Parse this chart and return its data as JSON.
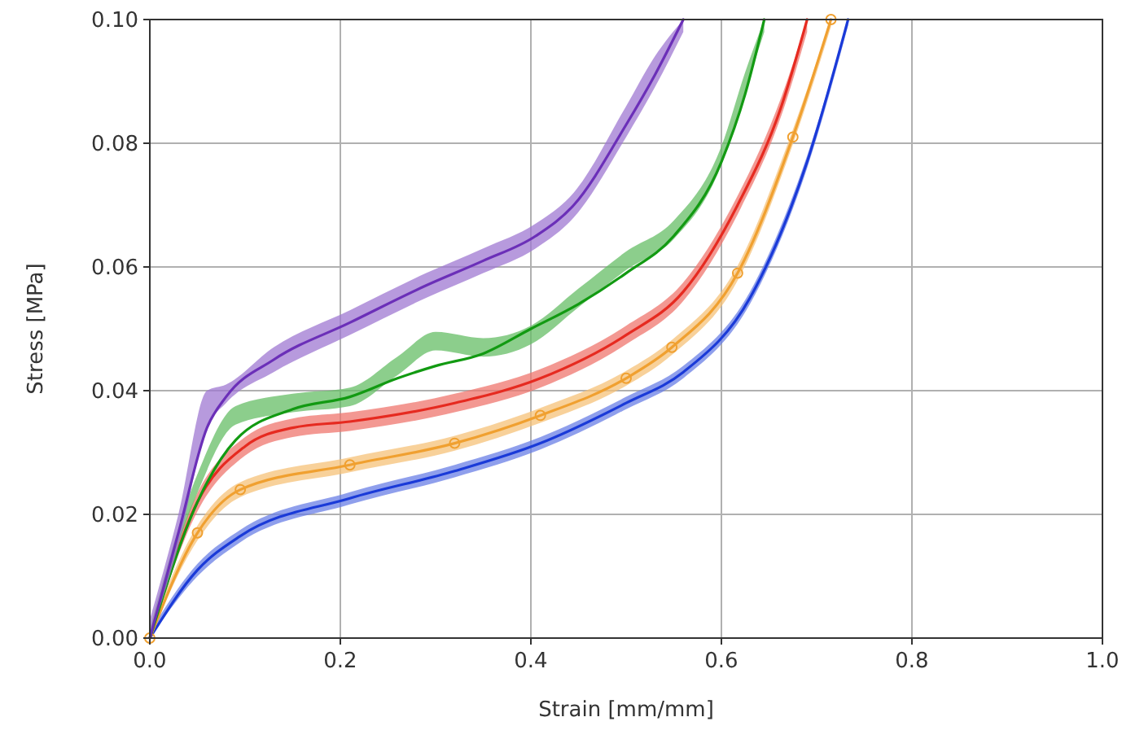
{
  "chart_data": {
    "type": "line",
    "xlabel": "Strain [mm/mm]",
    "ylabel": "Stress [MPa]",
    "xlim": [
      0,
      1
    ],
    "ylim": [
      0,
      0.1
    ],
    "xticks": [
      {
        "value": 0,
        "label": "0.0"
      },
      {
        "value": 0.2,
        "label": "0.2"
      },
      {
        "value": 0.4,
        "label": "0.4"
      },
      {
        "value": 0.6,
        "label": "0.6"
      },
      {
        "value": 0.8,
        "label": "0.8"
      },
      {
        "value": 1,
        "label": "1.0"
      }
    ],
    "yticks": [
      {
        "value": 0,
        "label": "0.00"
      },
      {
        "value": 0.02,
        "label": "0.02"
      },
      {
        "value": 0.04,
        "label": "0.04"
      },
      {
        "value": 0.06,
        "label": "0.06"
      },
      {
        "value": 0.08,
        "label": "0.08"
      },
      {
        "value": 0.1,
        "label": "0.10"
      }
    ],
    "grid": true,
    "series": [
      {
        "color": "#1a3ad8",
        "x": [
          0,
          0.05,
          0.095,
          0.21,
          0.32,
          0.41,
          0.5,
          0.56,
          0.63,
          0.69,
          0.733
        ],
        "values": [
          0,
          0.011,
          0.0165,
          0.0226,
          0.027,
          0.0315,
          0.038,
          0.043,
          0.055,
          0.077,
          0.1
        ],
        "lower": [
          0,
          0.01,
          0.0155,
          0.0216,
          0.026,
          0.0305,
          0.037,
          0.042,
          0.054,
          0.076,
          0.099
        ],
        "upper": [
          0.001,
          0.012,
          0.0175,
          0.0236,
          0.028,
          0.0325,
          0.039,
          0.044,
          0.056,
          0.078,
          0.1
        ]
      },
      {
        "color": "#f0a030",
        "marker": "circle",
        "x": [
          0,
          0.05,
          0.095,
          0.21,
          0.32,
          0.41,
          0.5,
          0.548,
          0.617,
          0.675,
          0.715
        ],
        "values": [
          0,
          0.017,
          0.024,
          0.028,
          0.0315,
          0.036,
          0.042,
          0.047,
          0.059,
          0.081,
          0.1
        ],
        "lower": [
          0,
          0.0158,
          0.0228,
          0.0268,
          0.0303,
          0.0348,
          0.0408,
          0.0458,
          0.0578,
          0.0798,
          0.0988
        ],
        "upper": [
          0.0012,
          0.0182,
          0.0252,
          0.0292,
          0.0327,
          0.0372,
          0.0432,
          0.0482,
          0.0602,
          0.0822,
          0.1
        ]
      },
      {
        "color": "#e62a20",
        "x": [
          0,
          0.05,
          0.1,
          0.15,
          0.21,
          0.32,
          0.41,
          0.5,
          0.56,
          0.617,
          0.663,
          0.69
        ],
        "values": [
          0,
          0.022,
          0.031,
          0.034,
          0.035,
          0.038,
          0.042,
          0.049,
          0.056,
          0.07,
          0.086,
          0.1
        ],
        "lower": [
          0,
          0.0205,
          0.0295,
          0.0325,
          0.0335,
          0.0365,
          0.0405,
          0.0475,
          0.0545,
          0.0685,
          0.0845,
          0.098
        ],
        "upper": [
          0.0015,
          0.0235,
          0.0325,
          0.0355,
          0.0365,
          0.0395,
          0.0435,
          0.0505,
          0.0575,
          0.0715,
          0.0875,
          0.1
        ]
      },
      {
        "color": "#129a12",
        "x": [
          0,
          0.05,
          0.09,
          0.15,
          0.21,
          0.26,
          0.3,
          0.35,
          0.4,
          0.45,
          0.5,
          0.55,
          0.6,
          0.625,
          0.645
        ],
        "values": [
          0,
          0.022,
          0.032,
          0.037,
          0.039,
          0.042,
          0.044,
          0.046,
          0.05,
          0.054,
          0.059,
          0.065,
          0.077,
          0.088,
          0.1
        ],
        "lower": [
          0,
          0.0235,
          0.0345,
          0.0365,
          0.0375,
          0.0425,
          0.0465,
          0.0455,
          0.0475,
          0.0535,
          0.0595,
          0.0645,
          0.0765,
          0.0885,
          0.098
        ],
        "upper": [
          0.0015,
          0.0265,
          0.0375,
          0.0395,
          0.0405,
          0.0455,
          0.0495,
          0.0485,
          0.0505,
          0.0565,
          0.0625,
          0.0675,
          0.0795,
          0.0915,
          0.1
        ]
      },
      {
        "color": "#6b2fb8",
        "x": [
          0,
          0.03,
          0.06,
          0.08,
          0.13,
          0.21,
          0.29,
          0.35,
          0.405,
          0.445,
          0.5,
          0.53,
          0.56
        ],
        "values": [
          0,
          0.017,
          0.034,
          0.039,
          0.045,
          0.051,
          0.057,
          0.061,
          0.065,
          0.07,
          0.083,
          0.091,
          0.1
        ],
        "lower": [
          0,
          0.015,
          0.034,
          0.038,
          0.043,
          0.049,
          0.055,
          0.059,
          0.063,
          0.068,
          0.081,
          0.089,
          0.098
        ],
        "upper": [
          0.003,
          0.02,
          0.04,
          0.041,
          0.047,
          0.053,
          0.059,
          0.063,
          0.067,
          0.072,
          0.086,
          0.094,
          0.1
        ]
      }
    ]
  }
}
